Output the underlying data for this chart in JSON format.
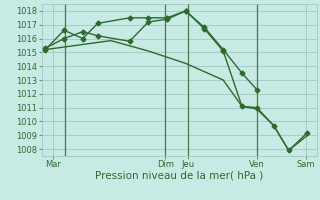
{
  "bg_color": "#c8eae4",
  "grid_color": "#9dbfbb",
  "line_color": "#2d6b2d",
  "vline_color": "#4a7a4a",
  "markersize": 2.5,
  "linewidth": 1.0,
  "ylim": [
    1007.5,
    1018.5
  ],
  "yticks": [
    1008,
    1009,
    1010,
    1011,
    1012,
    1013,
    1014,
    1015,
    1016,
    1017,
    1018
  ],
  "tick_fontsize": 6.0,
  "xlabel": "Pression niveau de la mer( hPa )",
  "xlabel_fontsize": 7.5,
  "xlim": [
    -0.2,
    14.5
  ],
  "vlines_x": [
    1.05,
    6.4,
    7.6,
    11.3
  ],
  "xtick_labels": [
    "Mar",
    "Dim",
    "Jeu",
    "Ven",
    "Sam"
  ],
  "xtick_positions": [
    0.4,
    6.4,
    7.6,
    11.3,
    13.9
  ],
  "line1_x": [
    0,
    1,
    2,
    2.8,
    4.5,
    5.5,
    6.5,
    7.5,
    8.5,
    9.5,
    10.5,
    11.3
  ],
  "line1_y": [
    1015.2,
    1016.6,
    1016.0,
    1017.1,
    1017.5,
    1017.5,
    1017.5,
    1018.0,
    1016.8,
    1015.2,
    1013.5,
    1012.3
  ],
  "line2_x": [
    0,
    1,
    2,
    2.8,
    4.5,
    5.5,
    6.5,
    7.5,
    8.5,
    9.5,
    10.5,
    11.3,
    12.2,
    13.0,
    14.0
  ],
  "line2_y": [
    1015.3,
    1016.0,
    1016.5,
    1016.2,
    1015.8,
    1017.2,
    1017.4,
    1018.0,
    1016.7,
    1015.1,
    1011.1,
    1011.0,
    1009.7,
    1007.9,
    1009.2
  ],
  "line3_x": [
    0,
    3.5,
    5.5,
    7.5,
    9.5,
    10.5,
    11.3,
    12.2,
    13.0,
    14.0
  ],
  "line3_y": [
    1015.2,
    1015.85,
    1015.1,
    1014.2,
    1013.0,
    1011.1,
    1010.9,
    1009.7,
    1007.9,
    1009.0
  ]
}
